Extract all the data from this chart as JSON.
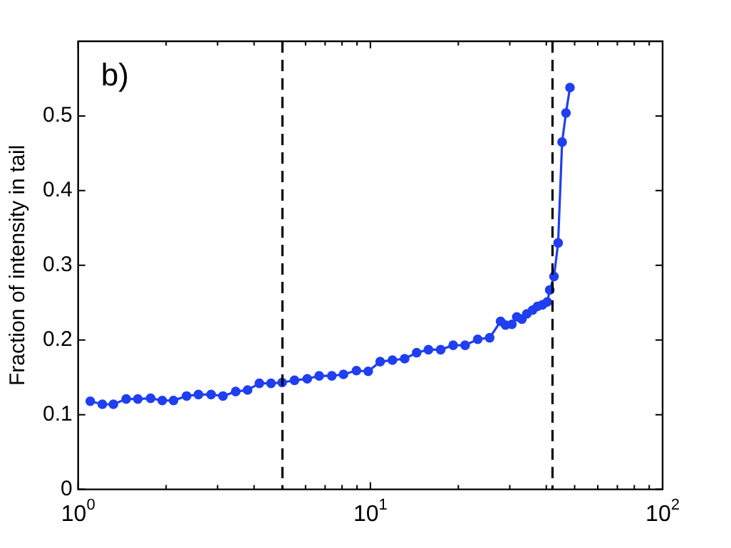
{
  "chart_data": {
    "type": "line",
    "ylabel": "Fraction of intensity in tail",
    "annotations": [
      "b)"
    ],
    "x": [
      1.1,
      1.21,
      1.32,
      1.46,
      1.6,
      1.77,
      1.94,
      2.12,
      2.35,
      2.58,
      2.85,
      3.13,
      3.46,
      3.8,
      4.17,
      4.57,
      4.99,
      5.5,
      6.08,
      6.68,
      7.38,
      8.09,
      8.96,
      9.83,
      10.8,
      11.9,
      13.1,
      14.4,
      15.8,
      17.4,
      19.2,
      21.1,
      23.3,
      25.6,
      27.9,
      29.0,
      30.5,
      31.7,
      33.0,
      34.3,
      35.9,
      37.3,
      38.8,
      40.3,
      41.1,
      42.5,
      43.9,
      45.3,
      46.7,
      48.2
    ],
    "series": [
      {
        "color": "#1f3ff0",
        "values": [
          0.118,
          0.114,
          0.114,
          0.121,
          0.121,
          0.122,
          0.119,
          0.119,
          0.125,
          0.127,
          0.127,
          0.125,
          0.131,
          0.133,
          0.142,
          0.142,
          0.143,
          0.146,
          0.148,
          0.152,
          0.152,
          0.154,
          0.159,
          0.158,
          0.171,
          0.173,
          0.175,
          0.183,
          0.187,
          0.187,
          0.193,
          0.193,
          0.201,
          0.203,
          0.225,
          0.22,
          0.221,
          0.231,
          0.228,
          0.235,
          0.24,
          0.245,
          0.247,
          0.251,
          0.267,
          0.285,
          0.33,
          0.465,
          0.504,
          0.538
        ]
      }
    ],
    "log": "x",
    "xlim": [
      1,
      100
    ],
    "xticks": [
      {
        "value": 1,
        "label": "10$^{0}$"
      },
      {
        "value": 2,
        "label": null
      },
      {
        "value": 3,
        "label": null
      },
      {
        "value": 4,
        "label": null
      },
      {
        "value": 5,
        "label": null
      },
      {
        "value": 6,
        "label": null
      },
      {
        "value": 7,
        "label": null
      },
      {
        "value": 8,
        "label": null
      },
      {
        "value": 9,
        "label": null
      },
      {
        "value": 10,
        "label": "10$^{1}$"
      },
      {
        "value": 20,
        "label": null
      },
      {
        "value": 30,
        "label": null
      },
      {
        "value": 40,
        "label": null
      },
      {
        "value": 50,
        "label": null
      },
      {
        "value": 60,
        "label": null
      },
      {
        "value": 70,
        "label": null
      },
      {
        "value": 80,
        "label": null
      },
      {
        "value": 90,
        "label": null
      },
      {
        "value": 100,
        "label": "10$^{2}$"
      }
    ],
    "ylim": [
      0,
      0.6
    ],
    "yticks": [
      0,
      0.1,
      0.2,
      0.3,
      0.4,
      0.5
    ],
    "ref_lines": [
      {
        "axis": "x",
        "value": 5,
        "color": "#000000",
        "line_style": "dashed"
      },
      {
        "axis": "x",
        "value": 42,
        "color": "#000000",
        "line_style": "dashed"
      }
    ],
    "grid": false,
    "legend": false,
    "marker": "circle",
    "line_style": "solid"
  }
}
